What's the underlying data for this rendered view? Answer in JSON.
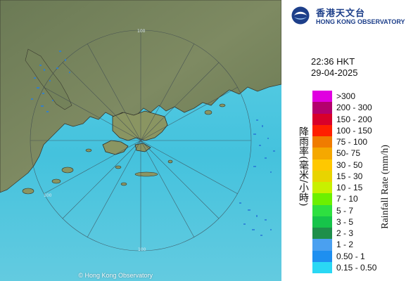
{
  "header": {
    "org_name_zh": "香港天文台",
    "org_name_en": "HONG KONG OBSERVATORY",
    "logo_icon": "hko-logo"
  },
  "timestamp": {
    "time": "22:36 HKT",
    "date": "29-04-2025"
  },
  "legend": {
    "axis_label_en": "Rainfall Rate (mm/h)",
    "axis_label_zh": "降雨率(毫米/小時)",
    "items": [
      {
        "range": ">300",
        "color": "#e000e0"
      },
      {
        "range": "200 - 300",
        "color": "#b4006c"
      },
      {
        "range": "150 - 200",
        "color": "#d8002a"
      },
      {
        "range": "100 - 150",
        "color": "#ff1f00"
      },
      {
        "range": "75 - 100",
        "color": "#f07c00"
      },
      {
        "range": "50- 75",
        "color": "#f5a800"
      },
      {
        "range": "30 - 50",
        "color": "#ffc800"
      },
      {
        "range": "15 - 30",
        "color": "#e8d400"
      },
      {
        "range": "10 - 15",
        "color": "#c8f000"
      },
      {
        "range": "7 - 10",
        "color": "#6cf000"
      },
      {
        "range": "5 - 7",
        "color": "#2ee040"
      },
      {
        "range": "3 - 5",
        "color": "#16c44a"
      },
      {
        "range": "2 - 3",
        "color": "#1e8f4a"
      },
      {
        "range": "1 - 2",
        "color": "#4aa0f0"
      },
      {
        "range": "0.50 - 1",
        "color": "#1e8ff0"
      },
      {
        "range": "0.15 - 0.50",
        "color": "#2ad8f4"
      }
    ]
  },
  "map": {
    "range_rings_label": "100",
    "copyright": "© Hong Kong Observatory"
  }
}
